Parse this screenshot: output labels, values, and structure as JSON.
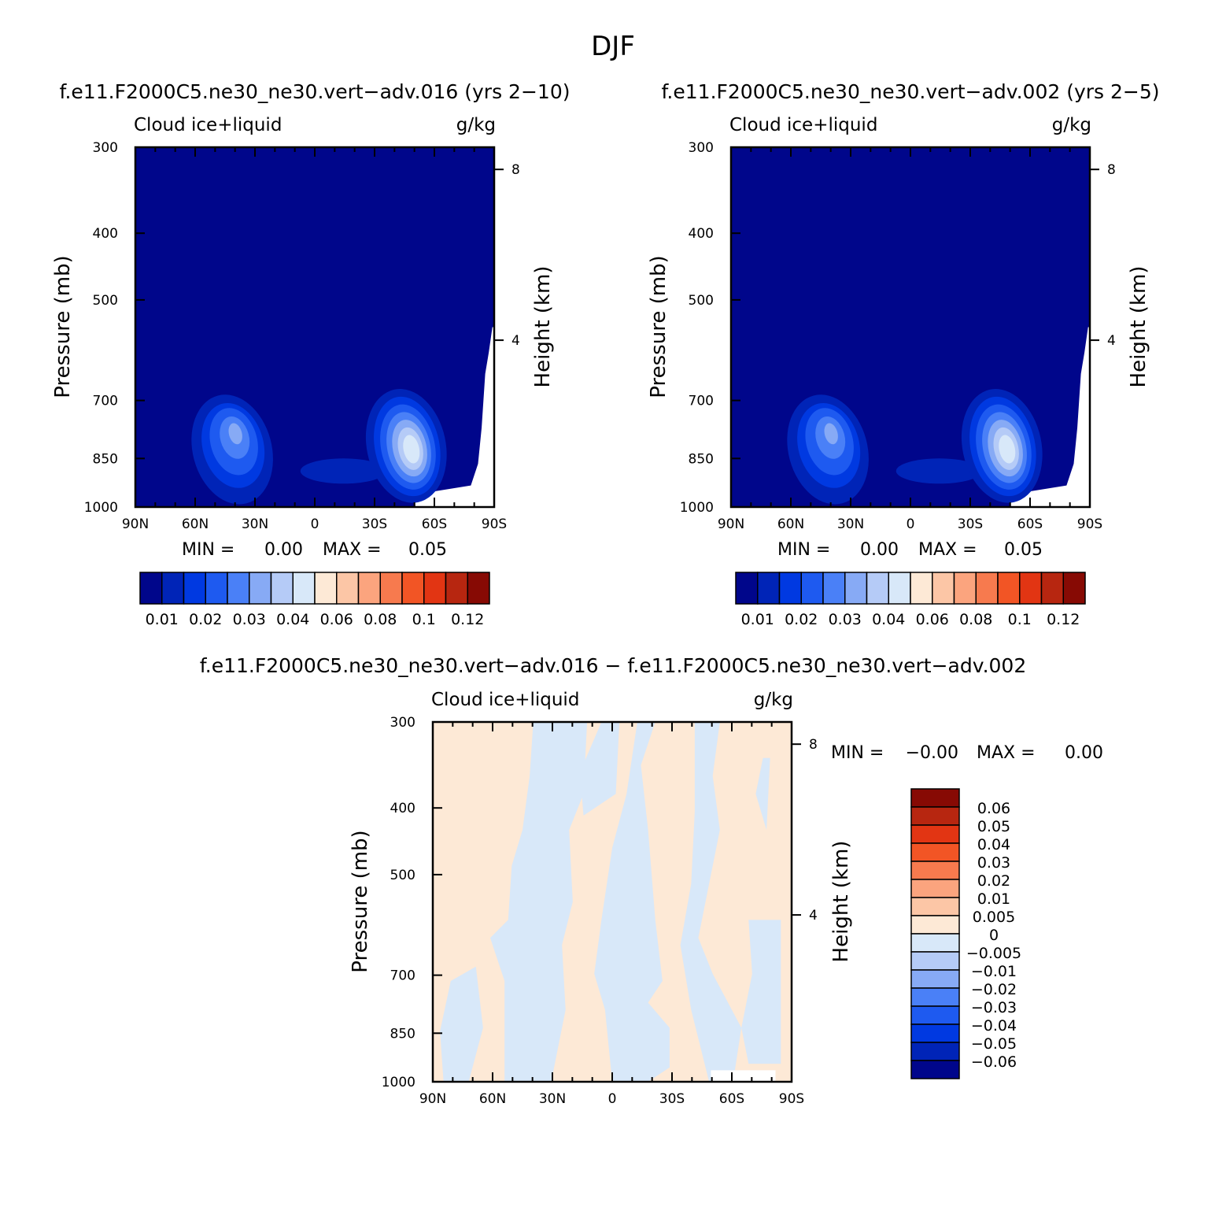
{
  "figure_title": "DJF",
  "panels": [
    {
      "id": "top-left",
      "title": "f.e11.F2000C5.ne30_ne30.vert−adv.016 (yrs 2−10)",
      "left_string": "Cloud ice+liquid",
      "right_string": "g/kg",
      "ylabel": "Pressure (mb)",
      "y2label": "Height (km)",
      "stats": {
        "min_label": "MIN =",
        "min_value": "0.00",
        "max_label": "MAX =",
        "max_value": "0.05"
      },
      "colorbar_labels": [
        "0.01",
        "0.02",
        "0.03",
        "0.04",
        "0.06",
        "0.08",
        "0.1",
        "0.12"
      ]
    },
    {
      "id": "top-right",
      "title": "f.e11.F2000C5.ne30_ne30.vert−adv.002 (yrs 2−5)",
      "left_string": "Cloud ice+liquid",
      "right_string": "g/kg",
      "ylabel": "Pressure (mb)",
      "y2label": "Height (km)",
      "stats": {
        "min_label": "MIN =",
        "min_value": "0.00",
        "max_label": "MAX =",
        "max_value": "0.05"
      },
      "colorbar_labels": [
        "0.01",
        "0.02",
        "0.03",
        "0.04",
        "0.06",
        "0.08",
        "0.1",
        "0.12"
      ]
    },
    {
      "id": "bottom",
      "title": "f.e11.F2000C5.ne30_ne30.vert−adv.016 − f.e11.F2000C5.ne30_ne30.vert−adv.002",
      "left_string": "Cloud ice+liquid",
      "right_string": "g/kg",
      "ylabel": "Pressure (mb)",
      "y2label": "Height (km)",
      "stats": {
        "min_label": "MIN =",
        "min_value": "−0.00",
        "max_label": "MAX =",
        "max_value": "0.00"
      },
      "colorbar_labels": [
        "0.06",
        "0.05",
        "0.04",
        "0.03",
        "0.02",
        "0.01",
        "0.005",
        "0",
        "−0.005",
        "−0.01",
        "−0.02",
        "−0.03",
        "−0.04",
        "−0.05",
        "−0.06"
      ]
    }
  ],
  "chart_data": [
    {
      "type": "heatmap",
      "title": "f.e11.F2000C5.ne30_ne30.vert−adv.016 (yrs 2−10)",
      "x_ticks": [
        "90N",
        "60N",
        "30N",
        "0",
        "30S",
        "60S",
        "90S"
      ],
      "y_ticks": [
        "300",
        "400",
        "500",
        "700",
        "850",
        "1000"
      ],
      "y2_ticks": [
        "8",
        "4"
      ],
      "ylim": [
        1000,
        300
      ],
      "y_scale": "log",
      "xlim": [
        90,
        -90
      ],
      "levels": [
        0.01,
        0.02,
        0.03,
        0.04,
        0.06,
        0.08,
        0.1,
        0.12
      ],
      "min": 0.0,
      "max": 0.05,
      "features": [
        {
          "name": "northern maximum",
          "lat": 40,
          "pressure": 850,
          "value": 0.03
        },
        {
          "name": "southern maximum",
          "lat": -45,
          "pressure": 850,
          "value": 0.05
        }
      ]
    },
    {
      "type": "heatmap",
      "title": "f.e11.F2000C5.ne30_ne30.vert−adv.002 (yrs 2−5)",
      "x_ticks": [
        "90N",
        "60N",
        "30N",
        "0",
        "30S",
        "60S",
        "90S"
      ],
      "y_ticks": [
        "300",
        "400",
        "500",
        "700",
        "850",
        "1000"
      ],
      "y2_ticks": [
        "8",
        "4"
      ],
      "ylim": [
        1000,
        300
      ],
      "y_scale": "log",
      "xlim": [
        90,
        -90
      ],
      "levels": [
        0.01,
        0.02,
        0.03,
        0.04,
        0.06,
        0.08,
        0.1,
        0.12
      ],
      "min": 0.0,
      "max": 0.05,
      "features": [
        {
          "name": "northern maximum",
          "lat": 40,
          "pressure": 850,
          "value": 0.03
        },
        {
          "name": "southern maximum",
          "lat": -45,
          "pressure": 850,
          "value": 0.05
        }
      ]
    },
    {
      "type": "heatmap",
      "title": "f.e11.F2000C5.ne30_ne30.vert−adv.016 − f.e11.F2000C5.ne30_ne30.vert−adv.002",
      "x_ticks": [
        "90N",
        "60N",
        "30N",
        "0",
        "30S",
        "60S",
        "90S"
      ],
      "y_ticks": [
        "300",
        "400",
        "500",
        "700",
        "850",
        "1000"
      ],
      "y2_ticks": [
        "8",
        "4"
      ],
      "ylim": [
        1000,
        300
      ],
      "y_scale": "log",
      "xlim": [
        90,
        -90
      ],
      "levels": [
        -0.06,
        -0.05,
        -0.04,
        -0.03,
        -0.02,
        -0.01,
        -0.005,
        0,
        0.005,
        0.01,
        0.02,
        0.03,
        0.04,
        0.05,
        0.06
      ],
      "min": -0.0,
      "max": 0.0
    }
  ],
  "colors": {
    "abs_scale": [
      "#00068b",
      "#0024b7",
      "#0039e1",
      "#1e5af0",
      "#4a80f7",
      "#87aaf5",
      "#b5cbf7",
      "#d8e8f9",
      "#fde9d6",
      "#fcc6a6",
      "#fba47e",
      "#f77a4e",
      "#f25525",
      "#e23513",
      "#b72610",
      "#870a04"
    ],
    "diff_scale": [
      "#870a04",
      "#b72610",
      "#e23513",
      "#f25525",
      "#f77a4e",
      "#fba47e",
      "#fcc6a6",
      "#fde9d6",
      "#d8e8f9",
      "#b5cbf7",
      "#87aaf5",
      "#4a80f7",
      "#1e5af0",
      "#0039e1",
      "#0024b7",
      "#00068b"
    ],
    "missing": "#ffffff",
    "diff_positive": "#fde9d6",
    "diff_negative": "#d8e8f9"
  }
}
